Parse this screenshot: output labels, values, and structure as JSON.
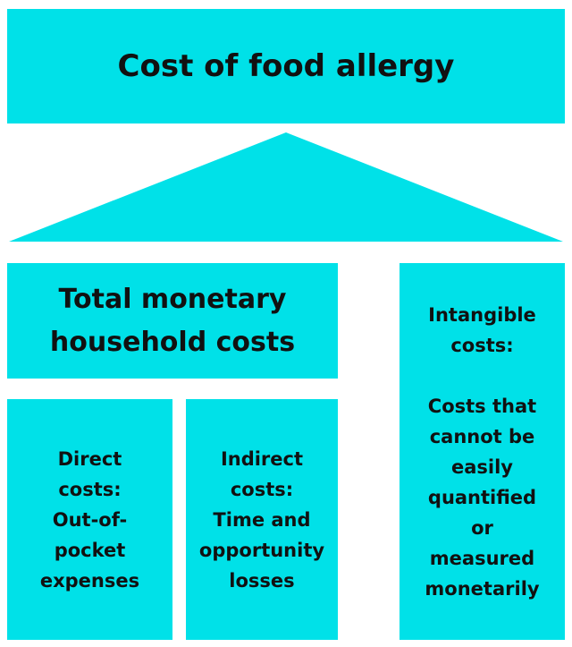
{
  "title": "Cost of food allergy",
  "total": {
    "line1": "Total monetary",
    "line2": "household costs"
  },
  "direct": {
    "lines": [
      "Direct",
      "costs:",
      "Out-of-",
      "pocket",
      "expenses"
    ]
  },
  "indirect": {
    "lines": [
      "Indirect",
      "costs:",
      "Time and",
      "opportunity",
      "losses"
    ]
  },
  "intangible": {
    "heading": [
      "Intangible",
      "costs:"
    ],
    "lines": [
      "Costs that",
      "cannot be",
      "easily",
      "quantified",
      "or",
      "measured",
      "monetarily"
    ]
  },
  "colors": {
    "fill": "#00e1e8",
    "text": "#111111"
  }
}
